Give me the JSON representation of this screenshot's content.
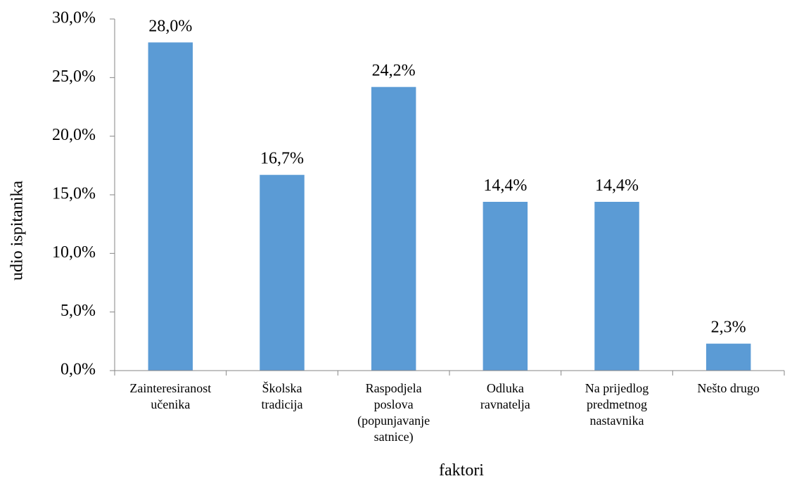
{
  "chart_data": {
    "type": "bar",
    "title": "",
    "xlabel": "faktori",
    "ylabel": "udio ispitanika",
    "ylim": [
      0,
      30
    ],
    "yticks": [
      "0,0%",
      "5,0%",
      "10,0%",
      "15,0%",
      "20,0%",
      "25,0%",
      "30,0%"
    ],
    "ytick_values": [
      0,
      5,
      10,
      15,
      20,
      25,
      30
    ],
    "categories": [
      [
        "Zainteresiranost",
        "učenika"
      ],
      [
        "Školska",
        "tradicija"
      ],
      [
        "Raspodjela",
        "poslova",
        "(popunjavanje",
        "satnice)"
      ],
      [
        "Odluka",
        "ravnatelja"
      ],
      [
        "Na prijedlog",
        "predmetnog",
        "nastavnika"
      ],
      [
        "Nešto drugo"
      ]
    ],
    "values": [
      28.0,
      16.7,
      24.2,
      14.4,
      14.4,
      2.3
    ],
    "data_labels": [
      "28,0%",
      "16,7%",
      "24,2%",
      "14,4%",
      "14,4%",
      "2,3%"
    ],
    "grid": false,
    "legend": "none",
    "bar_color": "#5b9bd5"
  }
}
